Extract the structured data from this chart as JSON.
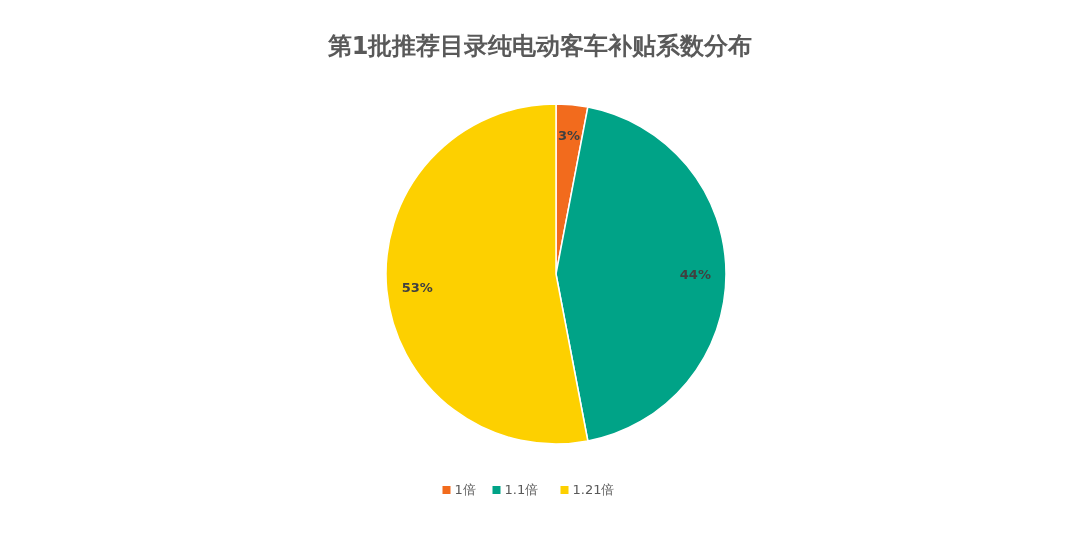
{
  "chart_data": {
    "type": "pie",
    "title": "第1批推荐目录纯电动客车补贴系数分布",
    "categories": [
      "1倍",
      "1.1倍",
      "1.21倍"
    ],
    "values": [
      3,
      44,
      53
    ],
    "colors": [
      "#f26b1d",
      "#00a387",
      "#fdd000"
    ],
    "value_labels": [
      "3%",
      "44%",
      "53%"
    ],
    "legend": "bottom"
  }
}
